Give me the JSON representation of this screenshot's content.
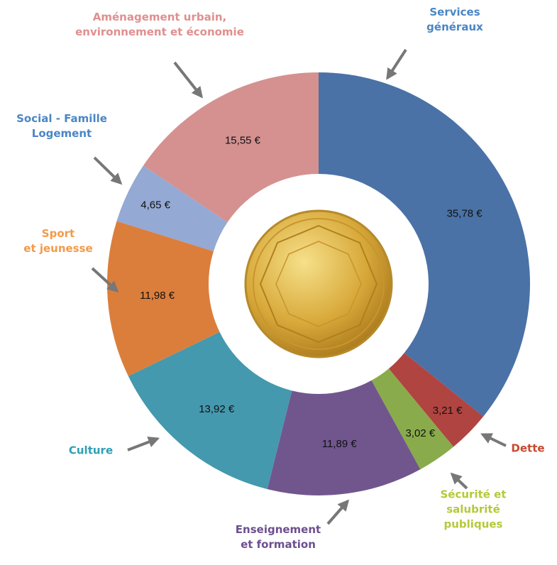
{
  "chart_data": {
    "type": "donut",
    "categories": [
      "Services généraux",
      "Dette",
      "Sécurité et salubrité\npubliques",
      "Enseignement\net formation",
      "Culture",
      "Sport\net jeunesse",
      "Social - Famille\nLogement",
      "Aménagement urbain,\nenvironnement et économie"
    ],
    "values": [
      35.78,
      3.21,
      3.02,
      11.89,
      13.92,
      11.98,
      4.65,
      15.55
    ],
    "value_labels": [
      "35,78 €",
      "3,21 €",
      "3,02 €",
      "11,89 €",
      "13,92 €",
      "11,98 €",
      "4,65 €",
      "15,55 €"
    ],
    "colors": [
      "#4a72a6",
      "#b04441",
      "#8aab4b",
      "#71568e",
      "#4499ae",
      "#db7e3c",
      "#94a9d3",
      "#d49190"
    ],
    "label_colors": [
      "#4a86c5",
      "#c9492f",
      "#b5c93a",
      "#6d4f8f",
      "#2f9fb5",
      "#f39a48",
      "#4a86c5",
      "#e08f8f"
    ]
  }
}
